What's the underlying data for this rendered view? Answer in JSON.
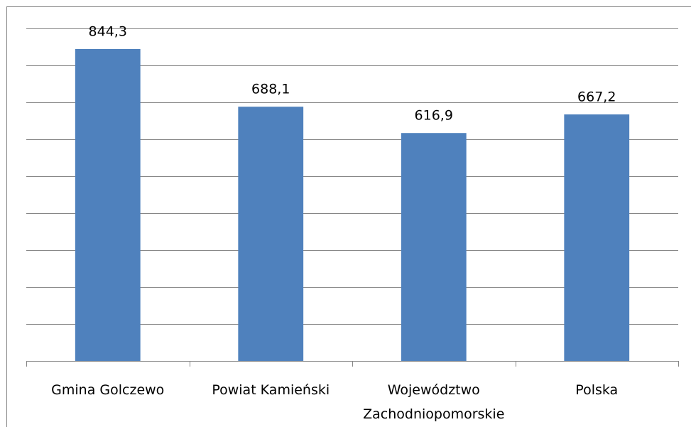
{
  "chart_data": {
    "type": "bar",
    "categories": [
      "Gmina Golczewo",
      "Powiat Kamieński",
      "Województwo Zachodniopomorskie",
      "Polska"
    ],
    "values": [
      844.3,
      688.1,
      616.9,
      667.2
    ],
    "value_labels": [
      "844,3",
      "688,1",
      "616,9",
      "667,2"
    ],
    "color": "#4f81bd",
    "ylim": [
      0,
      900
    ],
    "yticks": [
      0,
      100,
      200,
      300,
      400,
      500,
      600,
      700,
      800,
      900
    ],
    "grid": true
  }
}
